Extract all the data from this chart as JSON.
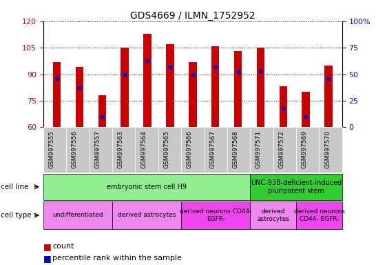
{
  "title": "GDS4669 / ILMN_1752952",
  "samples": [
    "GSM997555",
    "GSM997556",
    "GSM997557",
    "GSM997563",
    "GSM997564",
    "GSM997565",
    "GSM997566",
    "GSM997567",
    "GSM997568",
    "GSM997571",
    "GSM997572",
    "GSM997569",
    "GSM997570"
  ],
  "count_values": [
    97,
    94,
    78,
    105,
    113,
    107,
    97,
    106,
    103,
    105,
    83,
    80,
    95
  ],
  "percentile_values": [
    46,
    37,
    10,
    50,
    63,
    57,
    50,
    57,
    52,
    53,
    18,
    10,
    46
  ],
  "ymin": 60,
  "ymax": 120,
  "yticks": [
    60,
    75,
    90,
    105,
    120
  ],
  "y2min": 0,
  "y2max": 100,
  "y2ticks": [
    0,
    25,
    50,
    75,
    100
  ],
  "bar_color": "#cc0000",
  "dot_color": "#0000cc",
  "bar_width": 0.35,
  "cell_line_groups": [
    {
      "label": "embryonic stem cell H9",
      "start": 0,
      "end": 8,
      "color": "#90ee90"
    },
    {
      "label": "UNC-93B-deficient-induced\npluripotent stem",
      "start": 9,
      "end": 12,
      "color": "#33cc33"
    }
  ],
  "cell_type_groups": [
    {
      "label": "undifferentiated",
      "start": 0,
      "end": 2,
      "color": "#ee88ee"
    },
    {
      "label": "derived astrocytes",
      "start": 3,
      "end": 5,
      "color": "#ee88ee"
    },
    {
      "label": "derived neurons CD44-\nEGFR-",
      "start": 6,
      "end": 8,
      "color": "#ee44ee"
    },
    {
      "label": "derived\nastrocytes",
      "start": 9,
      "end": 10,
      "color": "#ee88ee"
    },
    {
      "label": "derived neurons\nCD44- EGFR-",
      "start": 11,
      "end": 12,
      "color": "#ee44ee"
    }
  ],
  "tick_label_color_left": "#cc0000",
  "tick_label_color_right": "#0000cc",
  "legend_count_label": "count",
  "legend_percentile_label": "percentile rank within the sample",
  "cell_line_label": "cell line",
  "cell_type_label": "cell type",
  "xtick_bg_color": "#c8c8c8"
}
